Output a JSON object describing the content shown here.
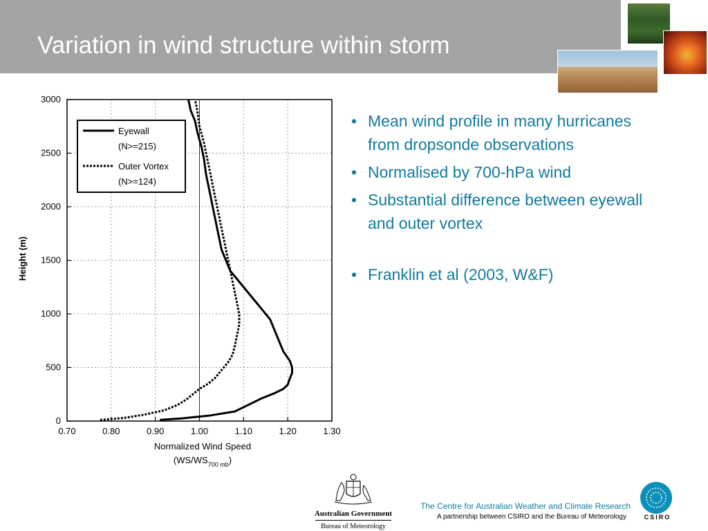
{
  "slide": {
    "title": "Variation in wind structure within storm",
    "bullets": [
      "Mean wind profile in many hurricanes from dropsonde observations",
      "Normalised by 700-hPa wind",
      "Substantial difference between eyewall and outer vortex",
      "Franklin et al (2003, W&F)"
    ],
    "bullet_marker": "•",
    "accent_color": "#127a9f",
    "title_bar_color": "#a3a4a6"
  },
  "footer": {
    "centre_name": "The Centre for Australian Weather and Climate Research",
    "partnership": "A partnership between CSIRO and the Bureau of Meteorology",
    "gov_name": "Australian Government",
    "bom_name": "Bureau of Meteorology",
    "csiro_label": "CSIRO"
  },
  "chart_data": {
    "type": "line",
    "xlabel": "Normalized Wind Speed",
    "xlabel_line2_prefix": "(WS/WS",
    "xlabel_sub": "700 mb",
    "xlabel_line2_suffix": ")",
    "ylabel": "Height (m)",
    "xlim": [
      0.7,
      1.3
    ],
    "ylim": [
      0,
      3000
    ],
    "x_ticks": [
      "0.70",
      "0.80",
      "0.90",
      "1.00",
      "1.10",
      "1.20",
      "1.30"
    ],
    "y_ticks": [
      "0",
      "500",
      "1000",
      "1500",
      "2000",
      "2500",
      "3000"
    ],
    "grid": true,
    "reference_line_x": 1.0,
    "legend_position": "top-left",
    "series": [
      {
        "name": "Eyewall",
        "legend_sub": "(N>=215)",
        "style": "solid",
        "points": [
          [
            0.91,
            10
          ],
          [
            0.96,
            25
          ],
          [
            1.02,
            50
          ],
          [
            1.08,
            90
          ],
          [
            1.11,
            150
          ],
          [
            1.14,
            210
          ],
          [
            1.17,
            260
          ],
          [
            1.19,
            300
          ],
          [
            1.2,
            340
          ],
          [
            1.205,
            400
          ],
          [
            1.21,
            450
          ],
          [
            1.21,
            500
          ],
          [
            1.205,
            560
          ],
          [
            1.19,
            650
          ],
          [
            1.18,
            750
          ],
          [
            1.17,
            850
          ],
          [
            1.16,
            950
          ],
          [
            1.15,
            1000
          ],
          [
            1.13,
            1100
          ],
          [
            1.11,
            1200
          ],
          [
            1.09,
            1300
          ],
          [
            1.07,
            1400
          ],
          [
            1.06,
            1500
          ],
          [
            1.05,
            1600
          ],
          [
            1.045,
            1700
          ],
          [
            1.04,
            1800
          ],
          [
            1.035,
            1900
          ],
          [
            1.03,
            2000
          ],
          [
            1.025,
            2100
          ],
          [
            1.02,
            2200
          ],
          [
            1.015,
            2300
          ],
          [
            1.01,
            2450
          ],
          [
            1.005,
            2550
          ],
          [
            0.995,
            2700
          ],
          [
            0.99,
            2800
          ],
          [
            0.98,
            2900
          ],
          [
            0.975,
            3000
          ]
        ]
      },
      {
        "name": "Outer Vortex",
        "legend_sub": "(N>=124)",
        "style": "dotted",
        "points": [
          [
            0.775,
            10
          ],
          [
            0.83,
            30
          ],
          [
            0.875,
            60
          ],
          [
            0.92,
            100
          ],
          [
            0.95,
            150
          ],
          [
            0.97,
            200
          ],
          [
            0.985,
            250
          ],
          [
            1.0,
            300
          ],
          [
            1.02,
            350
          ],
          [
            1.035,
            400
          ],
          [
            1.045,
            450
          ],
          [
            1.055,
            500
          ],
          [
            1.065,
            550
          ],
          [
            1.075,
            620
          ],
          [
            1.08,
            700
          ],
          [
            1.085,
            800
          ],
          [
            1.09,
            900
          ],
          [
            1.09,
            1000
          ],
          [
            1.085,
            1100
          ],
          [
            1.08,
            1200
          ],
          [
            1.075,
            1300
          ],
          [
            1.07,
            1400
          ],
          [
            1.065,
            1500
          ],
          [
            1.06,
            1600
          ],
          [
            1.055,
            1700
          ],
          [
            1.05,
            1800
          ],
          [
            1.045,
            1900
          ],
          [
            1.04,
            2000
          ],
          [
            1.035,
            2100
          ],
          [
            1.03,
            2200
          ],
          [
            1.025,
            2300
          ],
          [
            1.02,
            2400
          ],
          [
            1.015,
            2500
          ],
          [
            1.01,
            2600
          ],
          [
            1.0,
            2750
          ],
          [
            0.995,
            2900
          ],
          [
            0.99,
            3000
          ]
        ]
      }
    ]
  }
}
